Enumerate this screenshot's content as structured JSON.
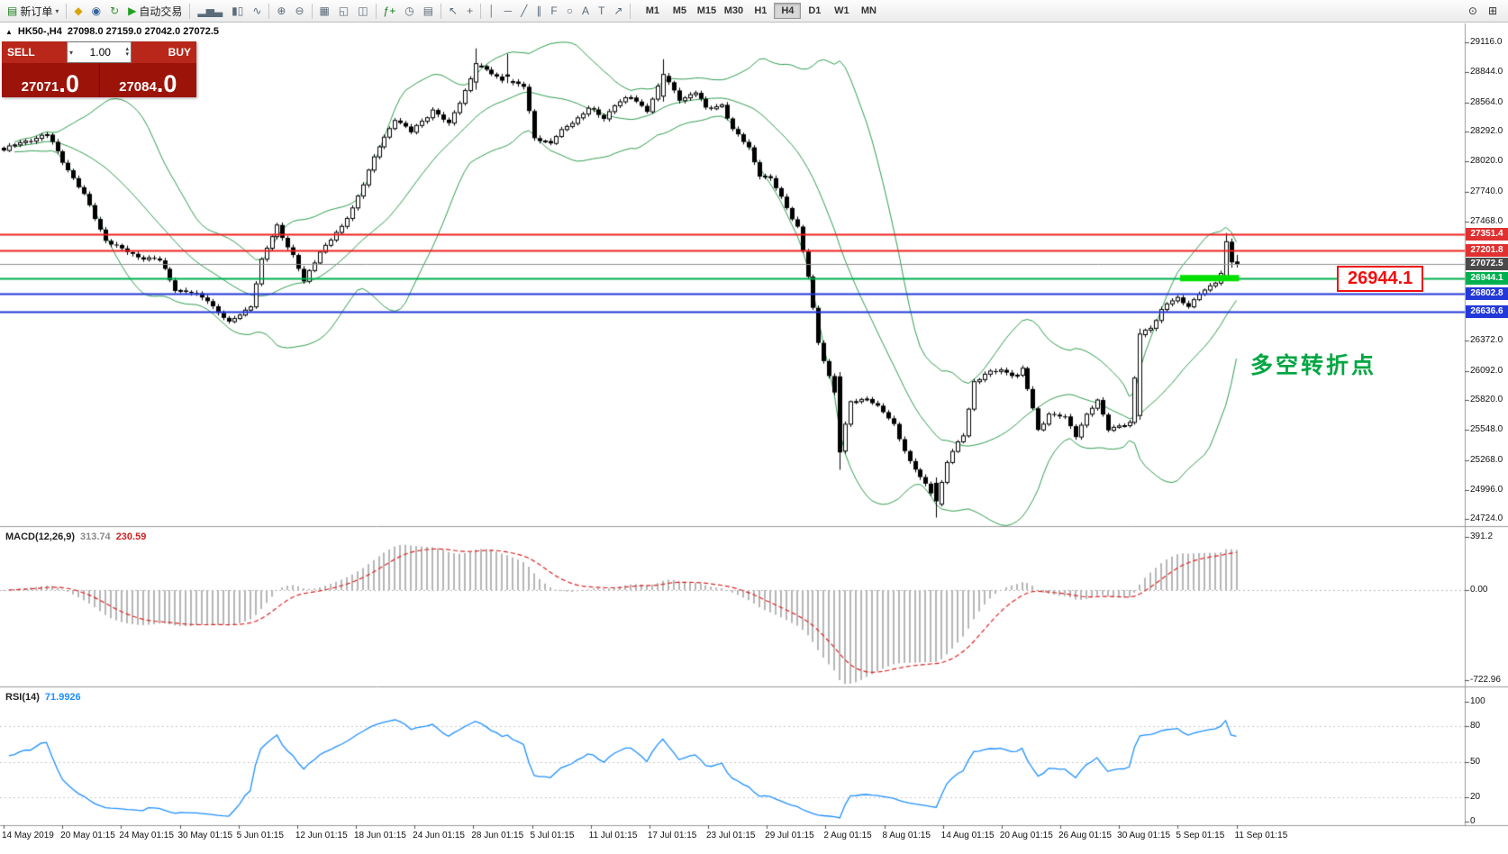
{
  "toolbar": {
    "items": [
      {
        "type": "btn",
        "name": "new-order-button",
        "icon": "▤",
        "icon_color": "#1c7c1c",
        "label": "新订单",
        "caret": true
      },
      {
        "type": "sep"
      },
      {
        "type": "btn",
        "name": "profiles-icon",
        "icon": "◆",
        "icon_color": "#d9a400"
      },
      {
        "type": "btn",
        "name": "market-watch-icon",
        "icon": "◉",
        "icon_color": "#31639c"
      },
      {
        "type": "btn",
        "name": "refresh-icon",
        "icon": "↻",
        "icon_color": "#3a8f3a"
      },
      {
        "type": "btn",
        "name": "autotrading-button",
        "icon": "▶",
        "icon_color": "#21a121",
        "label": "自动交易"
      },
      {
        "type": "sep"
      },
      {
        "type": "btn",
        "name": "bar-chart-icon",
        "icon": "▂▅▃"
      },
      {
        "type": "btn",
        "name": "candlestick-chart-icon",
        "icon": "▮▯"
      },
      {
        "type": "btn",
        "name": "line-chart-icon",
        "icon": "∿"
      },
      {
        "type": "sep"
      },
      {
        "type": "btn",
        "name": "zoom-in-icon",
        "icon": "⊕"
      },
      {
        "type": "btn",
        "name": "zoom-out-icon",
        "icon": "⊖"
      },
      {
        "type": "sep"
      },
      {
        "type": "btn",
        "name": "tile-windows-icon",
        "icon": "▦"
      },
      {
        "type": "btn",
        "name": "cascade-windows-icon",
        "icon": "◱"
      },
      {
        "type": "btn",
        "name": "arrange-windows-icon",
        "icon": "◫"
      },
      {
        "type": "sep"
      },
      {
        "type": "btn",
        "name": "indicators-icon",
        "icon": "ƒ+",
        "icon_color": "#1c7c1c"
      },
      {
        "type": "btn",
        "name": "periods-icon",
        "icon": "◷"
      },
      {
        "type": "btn",
        "name": "templates-icon",
        "icon": "▤"
      },
      {
        "type": "sep"
      },
      {
        "type": "btn",
        "name": "cursor-icon",
        "icon": "↖"
      },
      {
        "type": "btn",
        "name": "crosshair-icon",
        "icon": "+"
      },
      {
        "type": "sep"
      },
      {
        "type": "btn",
        "name": "vertical-line-icon",
        "icon": "│"
      },
      {
        "type": "btn",
        "name": "horizontal-line-icon",
        "icon": "─"
      },
      {
        "type": "btn",
        "name": "trendline-icon",
        "icon": "╱"
      },
      {
        "type": "btn",
        "name": "equidistant-channel-icon",
        "icon": "∥"
      },
      {
        "type": "btn",
        "name": "fibonacci-icon",
        "icon": "F"
      },
      {
        "type": "btn",
        "name": "shapes-icon",
        "icon": "○"
      },
      {
        "type": "btn",
        "name": "text-icon",
        "icon": "A"
      },
      {
        "type": "btn",
        "name": "text-label-icon",
        "icon": "T"
      },
      {
        "type": "btn",
        "name": "arrows-icon",
        "icon": "↗"
      },
      {
        "type": "sep"
      }
    ],
    "timeframes": [
      {
        "label": "M1"
      },
      {
        "label": "M5"
      },
      {
        "label": "M15"
      },
      {
        "label": "M30"
      },
      {
        "label": "H1"
      },
      {
        "label": "H4",
        "active": true
      },
      {
        "label": "D1"
      },
      {
        "label": "W1"
      },
      {
        "label": "MN"
      }
    ],
    "right_items": [
      {
        "name": "search-icon",
        "icon": "⊙"
      },
      {
        "name": "new-chart-icon",
        "icon": "⊞"
      }
    ]
  },
  "chart_header": {
    "collapse_icon": "▲",
    "symbol": "HK50-,H4",
    "ohlc": "27098.0 27159.0 27042.0 27072.5"
  },
  "trade_panel": {
    "sell_label": "SELL",
    "buy_label": "BUY",
    "volume": "1.00",
    "dropdown_icon": "▾",
    "spinner_up": "▴",
    "spinner_down": "▾",
    "sell_price_main": "27071",
    "sell_price_frac": ".0",
    "buy_price_main": "27084",
    "buy_price_frac": ".0"
  },
  "panels": {
    "macd": {
      "title": "MACD(12,26,9)",
      "value_main": "313.74",
      "value_signal": "230.59"
    },
    "rsi": {
      "title": "RSI(14)",
      "value": "71.9926"
    }
  },
  "annotations": {
    "price_callout": "26944.1",
    "callout_color": "#f01010",
    "turning_point_text": "多空转折点",
    "turning_point_color": "#00a642"
  },
  "chart_data": {
    "type": "candlestick",
    "symbol": "HK50-",
    "timeframe": "H4",
    "current_bar": {
      "open": 27098.0,
      "high": 27159.0,
      "low": 27042.0,
      "close": 27072.5
    },
    "ylim": [
      24680,
      29240
    ],
    "n_candles": 231,
    "close_anchors": [
      [
        0,
        28120
      ],
      [
        5,
        28230
      ],
      [
        8,
        28260
      ],
      [
        12,
        27950
      ],
      [
        15,
        27700
      ],
      [
        19,
        27300
      ],
      [
        22,
        27200
      ],
      [
        25,
        27150
      ],
      [
        29,
        27100
      ],
      [
        32,
        26850
      ],
      [
        35,
        26800
      ],
      [
        38,
        26750
      ],
      [
        42,
        26520
      ],
      [
        46,
        26700
      ],
      [
        48,
        27100
      ],
      [
        51,
        27430
      ],
      [
        54,
        27150
      ],
      [
        56,
        26900
      ],
      [
        59,
        27200
      ],
      [
        63,
        27400
      ],
      [
        65,
        27600
      ],
      [
        70,
        28150
      ],
      [
        73,
        28420
      ],
      [
        76,
        28280
      ],
      [
        80,
        28500
      ],
      [
        83,
        28350
      ],
      [
        88,
        28900
      ],
      [
        90,
        28850
      ],
      [
        93,
        28780
      ],
      [
        97,
        28700
      ],
      [
        99,
        28250
      ],
      [
        102,
        28180
      ],
      [
        105,
        28350
      ],
      [
        109,
        28500
      ],
      [
        112,
        28420
      ],
      [
        114,
        28550
      ],
      [
        117,
        28600
      ],
      [
        120,
        28500
      ],
      [
        123,
        28800
      ],
      [
        126,
        28600
      ],
      [
        129,
        28650
      ],
      [
        131,
        28500
      ],
      [
        134,
        28550
      ],
      [
        136,
        28300
      ],
      [
        139,
        28150
      ],
      [
        141,
        27900
      ],
      [
        143,
        27850
      ],
      [
        146,
        27600
      ],
      [
        148,
        27420
      ],
      [
        150,
        26950
      ],
      [
        152,
        26350
      ],
      [
        154,
        26050
      ],
      [
        155,
        25900
      ],
      [
        156,
        25350
      ],
      [
        158,
        25800
      ],
      [
        161,
        25850
      ],
      [
        164,
        25700
      ],
      [
        166,
        25600
      ],
      [
        169,
        25250
      ],
      [
        171,
        25100
      ],
      [
        173,
        24980
      ],
      [
        174,
        24880
      ],
      [
        176,
        25250
      ],
      [
        179,
        25500
      ],
      [
        181,
        26000
      ],
      [
        183,
        26050
      ],
      [
        186,
        26100
      ],
      [
        189,
        26050
      ],
      [
        190,
        26100
      ],
      [
        193,
        25550
      ],
      [
        195,
        25700
      ],
      [
        198,
        25650
      ],
      [
        200,
        25500
      ],
      [
        202,
        25700
      ],
      [
        204,
        25800
      ],
      [
        206,
        25550
      ],
      [
        208,
        25600
      ],
      [
        210,
        25600
      ],
      [
        212,
        26420
      ],
      [
        214,
        26500
      ],
      [
        216,
        26650
      ],
      [
        217,
        26700
      ],
      [
        219,
        26750
      ],
      [
        221,
        26700
      ],
      [
        223,
        26800
      ],
      [
        225,
        26850
      ],
      [
        226,
        26900
      ],
      [
        227,
        27000
      ],
      [
        228,
        27280
      ],
      [
        229,
        27090
      ],
      [
        230,
        27072.5
      ]
    ],
    "candle_overrides": {
      "88": [
        28750,
        29060,
        28680,
        28920
      ],
      "94": [
        28820,
        29010,
        28740,
        28800
      ],
      "123": [
        28620,
        28960,
        28570,
        28820
      ],
      "156": [
        26040,
        26080,
        25180,
        25340
      ],
      "174": [
        25060,
        25110,
        24740,
        24890
      ],
      "212": [
        25680,
        26480,
        25640,
        26430
      ],
      "228": [
        26960,
        27360,
        26930,
        27280
      ],
      "229": [
        27280,
        27310,
        27040,
        27090
      ],
      "230": [
        27098,
        27159,
        27042,
        27072.5
      ]
    },
    "wiggle": {
      "a1": 16,
      "f1": 0.93,
      "a2": 9,
      "f2": 2.13
    },
    "bollinger": {
      "period": 20,
      "deviation": 2,
      "color": "#2f9e4f"
    },
    "macd": {
      "fast": 12,
      "slow": 26,
      "signal": 9,
      "axis_labels": [
        "391.2",
        "0.00",
        "-722.96"
      ],
      "hist_color": "#b6b6b6",
      "signal_color": "#dd2222"
    },
    "rsi": {
      "period": 14,
      "axis_labels": [
        "100",
        "80",
        "50",
        "20",
        "0"
      ],
      "levels": [
        80,
        50,
        20
      ],
      "color": "#1e90ff"
    },
    "hlines": [
      {
        "price": 27351.4,
        "color": "#ee2222",
        "width": 2,
        "label": "27351.4",
        "label_bg": "#e03030"
      },
      {
        "price": 27201.8,
        "color": "#ee2222",
        "width": 2,
        "label": "27201.8",
        "label_bg": "#e03030"
      },
      {
        "price": 27072.5,
        "color": "#909090",
        "width": 1,
        "label": "27072.5",
        "label_bg": "#4a4a4a"
      },
      {
        "price": 26944.1,
        "color": "#00b050",
        "width": 2,
        "label": "26944.1",
        "label_bg": "#00b050"
      },
      {
        "price": 26802.8,
        "color": "#2238d8",
        "width": 2,
        "label": "26802.8",
        "label_bg": "#2238d8"
      },
      {
        "price": 26636.6,
        "color": "#2238d8",
        "width": 2,
        "label": "26636.6",
        "label_bg": "#2238d8"
      }
    ],
    "highlight": {
      "price": 26944.1,
      "from_index": 220,
      "to_index": 231,
      "color": "#00e000",
      "thickness": 7
    },
    "price_ticks": [
      "29116.0",
      "28844.0",
      "28564.0",
      "28292.0",
      "28020.0",
      "27740.0",
      "27468.0",
      "26372.0",
      "26092.0",
      "25820.0",
      "25548.0",
      "25268.0",
      "24996.0",
      "24724.0"
    ],
    "date_labels": [
      "14 May 2019",
      "20 May 01:15",
      "24 May 01:15",
      "30 May 01:15",
      "5 Jun 01:15",
      "12 Jun 01:15",
      "18 Jun 01:15",
      "24 Jun 01:15",
      "28 Jun 01:15",
      "5 Jul 01:15",
      "11 Jul 01:15",
      "17 Jul 01:15",
      "23 Jul 01:15",
      "29 Jul 01:15",
      "2 Aug 01:15",
      "8 Aug 01:15",
      "14 Aug 01:15",
      "20 Aug 01:15",
      "26 Aug 01:15",
      "30 Aug 01:15",
      "5 Sep 01:15",
      "11 Sep 01:15"
    ]
  }
}
